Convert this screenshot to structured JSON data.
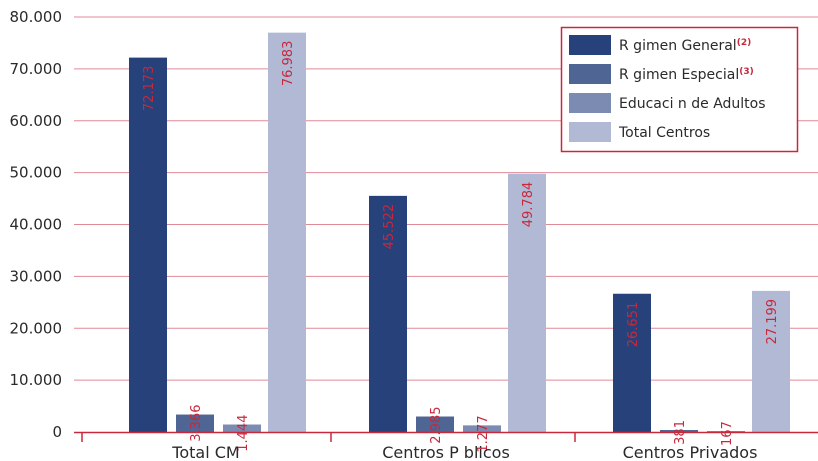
{
  "chart_data": {
    "type": "bar",
    "categories": [
      "Total CM",
      "Centros P blicos",
      "Centros Privados"
    ],
    "series": [
      {
        "name": "R gimen General",
        "note": "(2)",
        "color": "#27417a",
        "values": [
          72173,
          45522,
          26651
        ],
        "labels": [
          "72.173",
          "45.522",
          "26.651"
        ]
      },
      {
        "name": "R gimen Especial",
        "note": "(3)",
        "color": "#4f6593",
        "values": [
          3366,
          2985,
          381
        ],
        "labels": [
          "3.366",
          "2.985",
          "381"
        ]
      },
      {
        "name": "Educaci n de Adultos",
        "note": "",
        "color": "#7c8bb1",
        "values": [
          1444,
          1277,
          167
        ],
        "labels": [
          "1.444",
          "1.277",
          "167"
        ]
      },
      {
        "name": "Total Centros",
        "note": "",
        "color": "#b1b9d4",
        "values": [
          76983,
          49784,
          27199
        ],
        "labels": [
          "76.983",
          "49.784",
          "27.199"
        ]
      }
    ],
    "yticks": [
      {
        "value": 0,
        "label": "0"
      },
      {
        "value": 10000,
        "label": "10.000"
      },
      {
        "value": 20000,
        "label": "20.000"
      },
      {
        "value": 30000,
        "label": "30.000"
      },
      {
        "value": 40000,
        "label": "40.000"
      },
      {
        "value": 50000,
        "label": "50.000"
      },
      {
        "value": 60000,
        "label": "60.000"
      },
      {
        "value": 70000,
        "label": "70.000"
      },
      {
        "value": 80000,
        "label": "80.000"
      }
    ],
    "ylim": [
      0,
      80000
    ],
    "grid": true,
    "legend_position": "top-right",
    "colors": {
      "grid": "#e08a96",
      "axis": "#c8283c",
      "legend_border": "#c8283c",
      "label": "#c8283c"
    }
  }
}
